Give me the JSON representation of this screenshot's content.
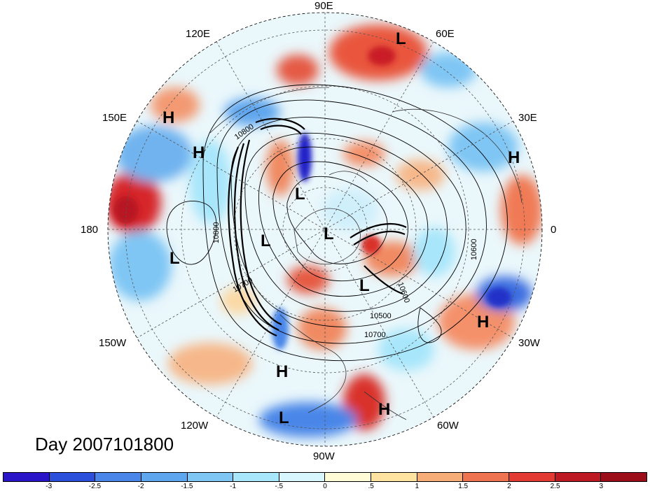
{
  "title": "Day 2007101800",
  "longitude_labels": {
    "lon_90e": "90E",
    "lon_60e": "60E",
    "lon_30e": "30E",
    "lon_0": "0",
    "lon_30w": "30W",
    "lon_60w": "60W",
    "lon_90w": "90W",
    "lon_120w": "120W",
    "lon_150w": "150W",
    "lon_180": "180",
    "lon_150e": "150E",
    "lon_120e": "120E"
  },
  "pressure_centers": [
    {
      "label": "L",
      "name": "low-center"
    },
    {
      "label": "H",
      "name": "high-center"
    },
    {
      "label": "H",
      "name": "high-center"
    },
    {
      "label": "H",
      "name": "high-center"
    },
    {
      "label": "L",
      "name": "low-center"
    },
    {
      "label": "L",
      "name": "low-center"
    },
    {
      "label": "L",
      "name": "low-center"
    },
    {
      "label": "L",
      "name": "low-center"
    },
    {
      "label": "L",
      "name": "low-center"
    },
    {
      "label": "H",
      "name": "high-center"
    },
    {
      "label": "H",
      "name": "high-center"
    },
    {
      "label": "L",
      "name": "low-center"
    },
    {
      "label": "H",
      "name": "high-center"
    }
  ],
  "contour_labels": [
    "10800",
    "10800",
    "10700",
    "10600",
    "10600",
    "10500",
    "10700"
  ],
  "colorbar": {
    "ticks": [
      "-3",
      "-2.5",
      "-2",
      "-1.5",
      "-1",
      "-.5",
      "0",
      ".5",
      "1",
      "1.5",
      "2",
      "2.5",
      "3"
    ],
    "colors": [
      "#2a15c9",
      "#2b4fdb",
      "#4a86e8",
      "#5ea6ee",
      "#7fc6f4",
      "#a8e6fb",
      "#d8f6fe",
      "#fefbd6",
      "#fde2a0",
      "#f6ad78",
      "#ee7350",
      "#e23b34",
      "#bd1923",
      "#9b0d18"
    ]
  },
  "colors": {
    "background": "#ffffff",
    "ocean_pale": "#e8f6fb"
  }
}
